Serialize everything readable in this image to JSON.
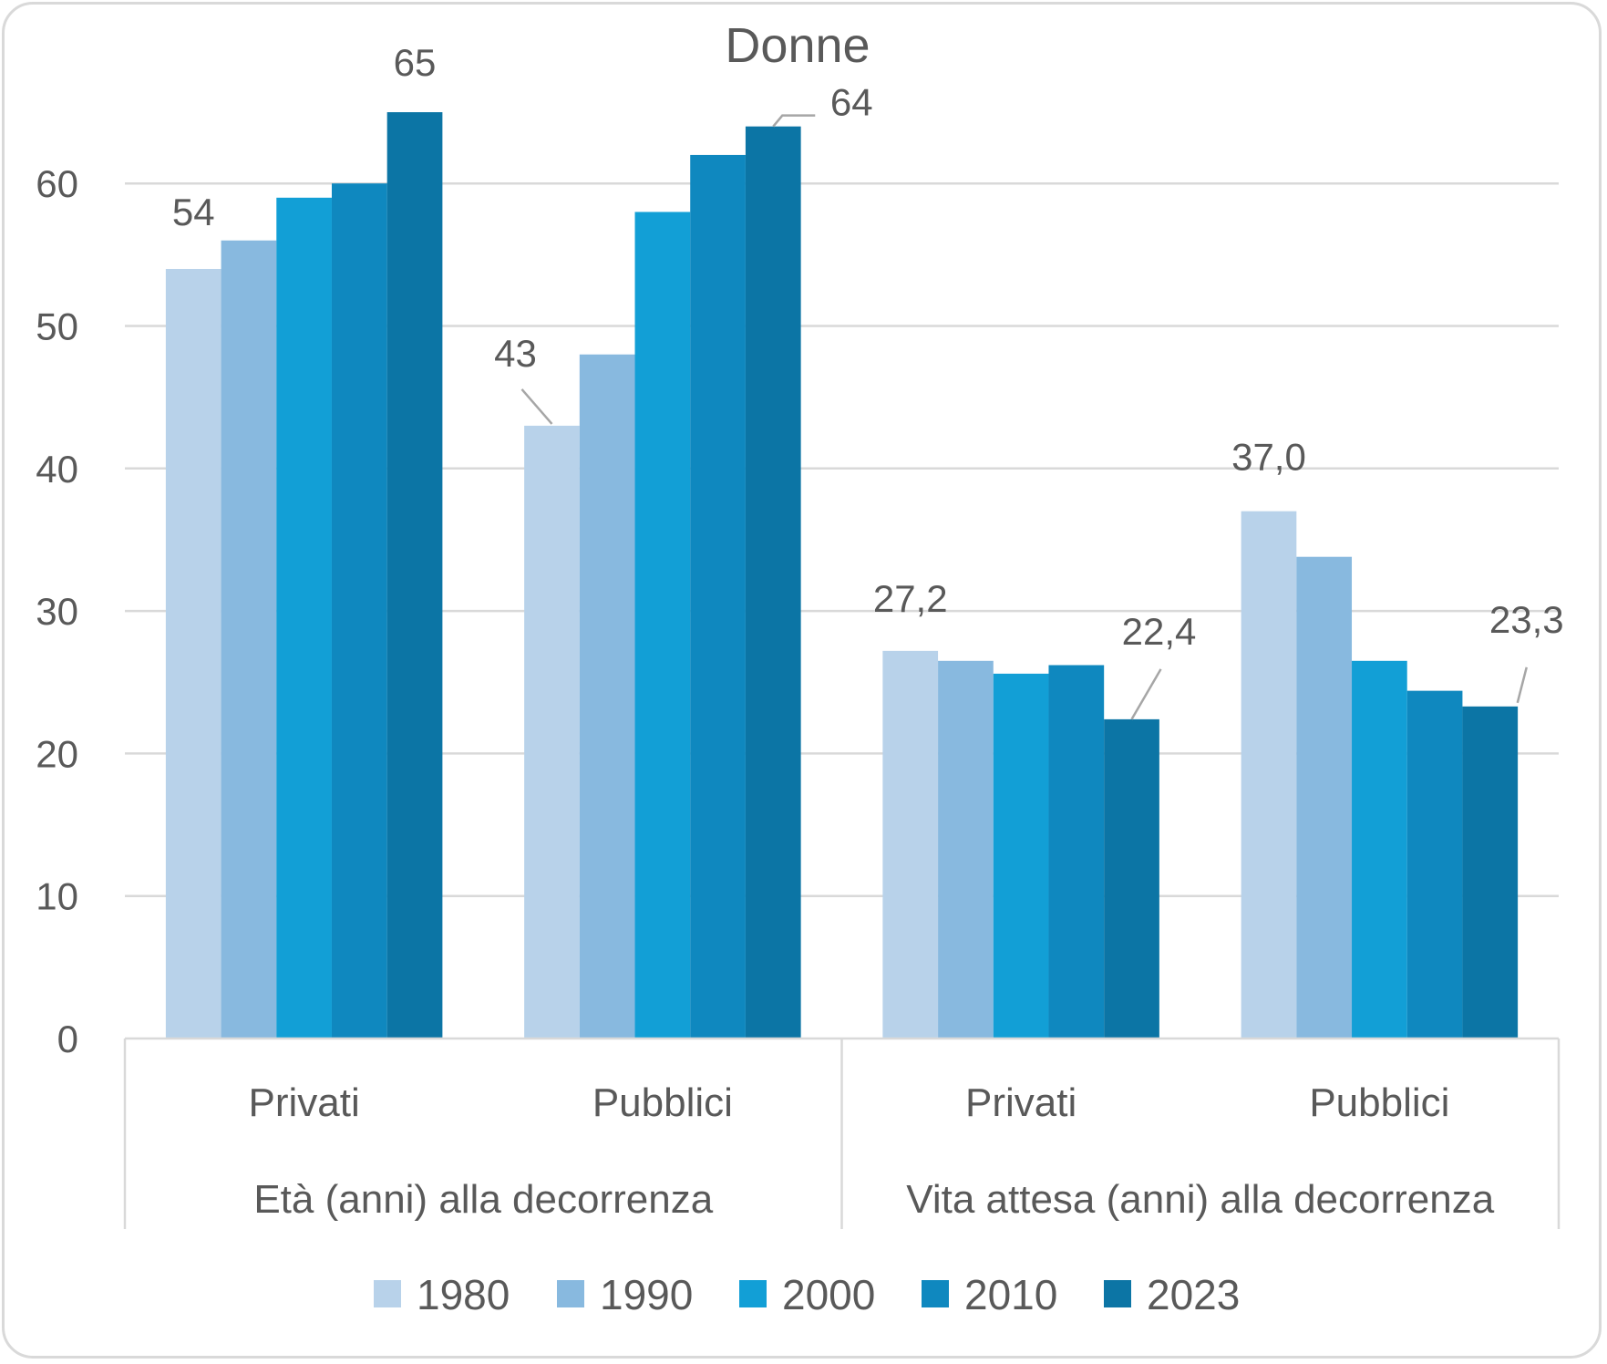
{
  "chart_data": {
    "type": "bar",
    "title": "Donne",
    "ylim": [
      0,
      65
    ],
    "yticks": [
      "0",
      "10",
      "20",
      "30",
      "40",
      "50",
      "60"
    ],
    "grid": true,
    "legend_position": "bottom",
    "groups": [
      {
        "label": "Età (anni) alla decorrenza",
        "categories": [
          "Privati",
          "Pubblici"
        ]
      },
      {
        "label": "Vita attesa (anni) alla decorrenza",
        "categories": [
          "Privati",
          "Pubblici"
        ]
      }
    ],
    "categories": [
      "Privati",
      "Pubblici",
      "Privati",
      "Pubblici"
    ],
    "series": [
      {
        "name": "1980",
        "color": "#b8d2ea",
        "values": [
          54,
          43,
          27.2,
          37.0
        ]
      },
      {
        "name": "1990",
        "color": "#88b9df",
        "values": [
          56,
          48,
          26.5,
          33.8
        ]
      },
      {
        "name": "2000",
        "color": "#129fd6",
        "values": [
          59,
          58,
          25.6,
          26.5
        ]
      },
      {
        "name": "2010",
        "color": "#0f88bf",
        "values": [
          60,
          62,
          26.2,
          24.4
        ]
      },
      {
        "name": "2023",
        "color": "#0c75a5",
        "values": [
          65,
          64,
          22.4,
          23.3
        ]
      }
    ],
    "data_labels": [
      {
        "series": 0,
        "category": 0,
        "text": "54"
      },
      {
        "series": 4,
        "category": 0,
        "text": "65"
      },
      {
        "series": 0,
        "category": 1,
        "text": "43"
      },
      {
        "series": 4,
        "category": 1,
        "text": "64"
      },
      {
        "series": 0,
        "category": 2,
        "text": "27,2"
      },
      {
        "series": 4,
        "category": 2,
        "text": "22,4"
      },
      {
        "series": 0,
        "category": 3,
        "text": "37,0"
      },
      {
        "series": 4,
        "category": 3,
        "text": "23,3"
      }
    ]
  }
}
